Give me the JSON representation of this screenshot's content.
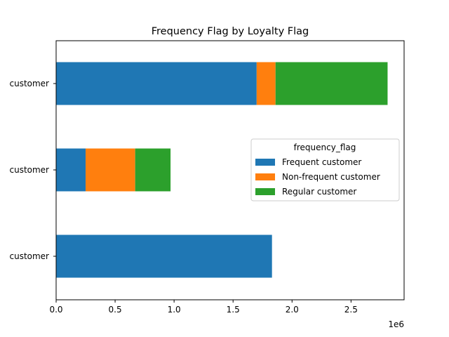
{
  "chart_data": {
    "type": "bar",
    "orientation": "horizontal",
    "stacked": true,
    "title": "Frequency Flag by Loyalty Flag",
    "xlabel": "",
    "ylabel": "",
    "x_scale_label": "1e6",
    "xlim": [
      0,
      2.95
    ],
    "x_ticks": [
      "0.0",
      "0.5",
      "1.0",
      "1.5",
      "2.0",
      "2.5"
    ],
    "x_tick_values": [
      0,
      0.5,
      1.0,
      1.5,
      2.0,
      2.5
    ],
    "categories": [
      "customer",
      "customer",
      "customer"
    ],
    "legend": {
      "title": "frequency_flag",
      "placement": "center-right"
    },
    "series": [
      {
        "name": "Frequent customer",
        "color": "#1f77b4",
        "values": [
          1.7,
          0.25,
          1.83
        ]
      },
      {
        "name": "Non-frequent customer",
        "color": "#ff7f0e",
        "values": [
          0.16,
          0.42,
          0.0
        ]
      },
      {
        "name": "Regular customer",
        "color": "#2ca02c",
        "values": [
          0.95,
          0.3,
          0.0
        ]
      }
    ],
    "grid": false
  }
}
